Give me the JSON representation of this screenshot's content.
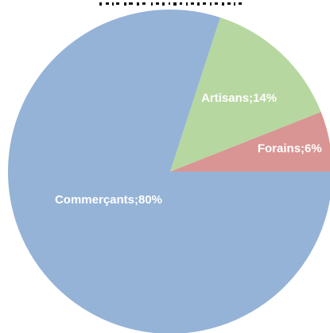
{
  "chart_data": {
    "type": "pie",
    "categories": [
      "Commerçants",
      "Artisans",
      "Forains"
    ],
    "values": [
      80,
      14,
      6
    ],
    "labels": [
      "Commerçants;80%",
      "Artisans;14%",
      "Forains;6%"
    ],
    "colors": [
      "#95B3D7",
      "#B7D7A0",
      "#D99594"
    ],
    "start_angle_deg": 0,
    "direction": "counterclockwise-from-3-oclock",
    "title": "",
    "legend": "none"
  }
}
